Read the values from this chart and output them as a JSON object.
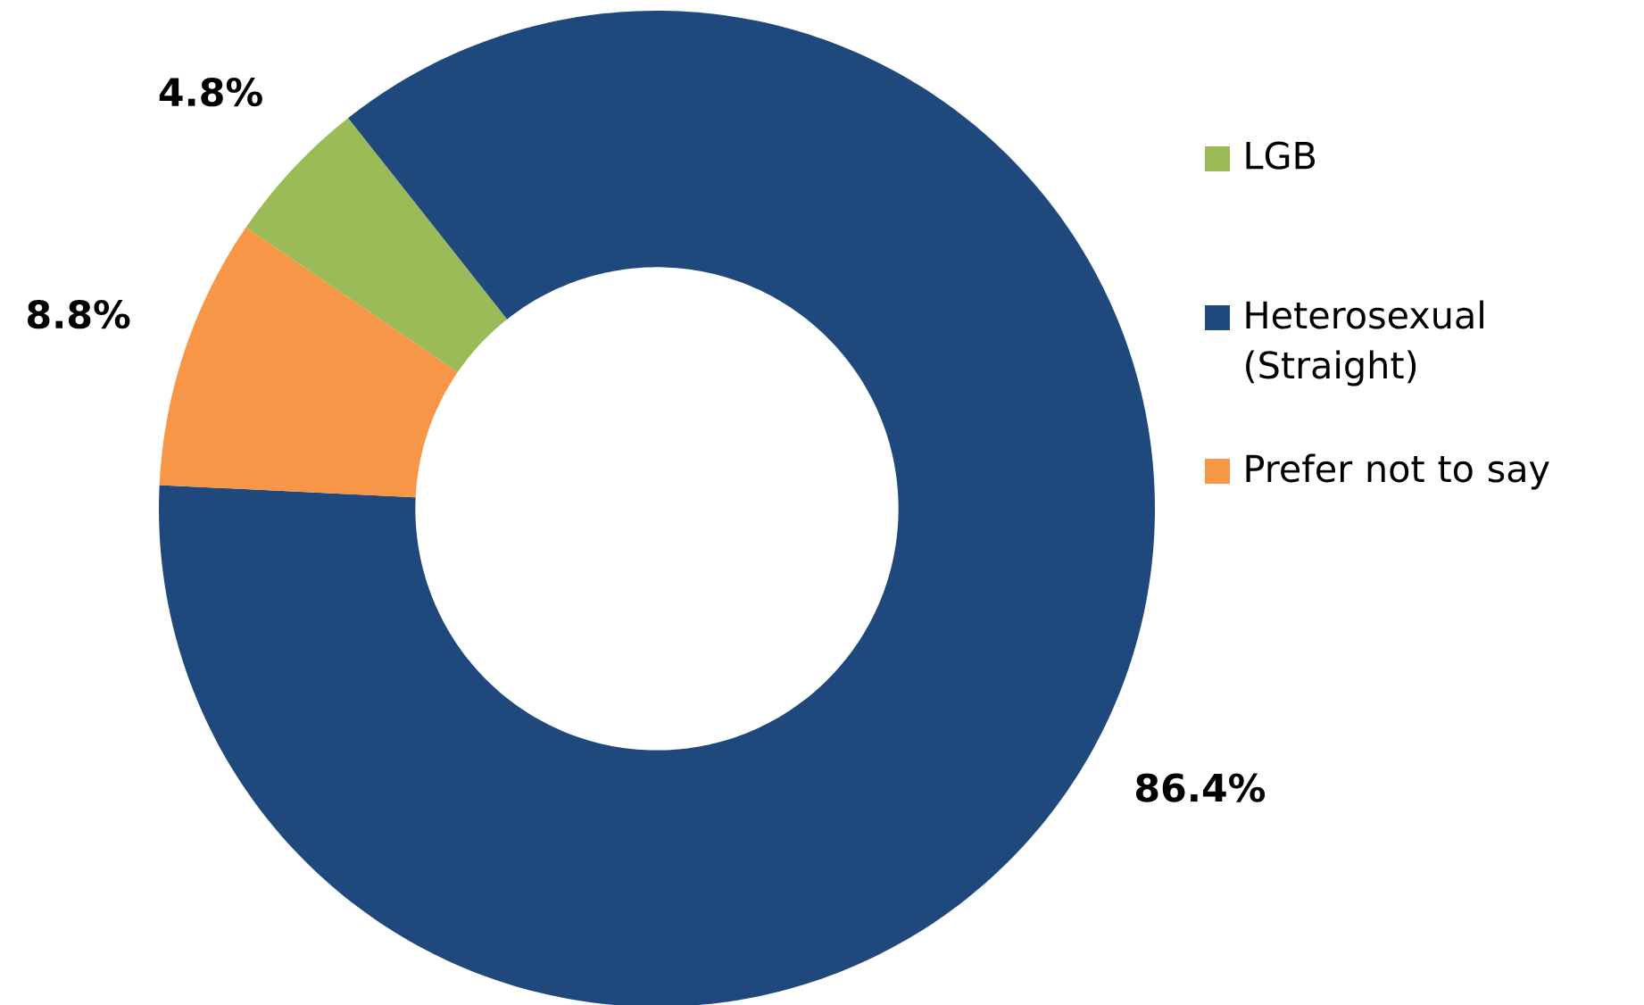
{
  "chart_data": {
    "type": "donut",
    "categories": [
      "LGB",
      "Heterosexual (Straight)",
      "Prefer not to say"
    ],
    "values": [
      4.8,
      86.4,
      8.8
    ],
    "colors": [
      "#9bbb59",
      "#1f497d",
      "#f79646"
    ],
    "value_labels": [
      "4.8%",
      "86.4%",
      "8.8%"
    ],
    "legend": "right"
  }
}
